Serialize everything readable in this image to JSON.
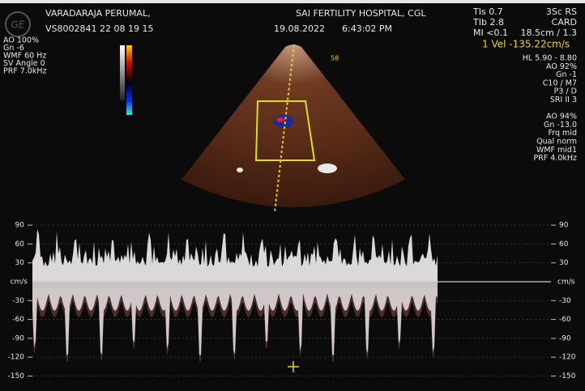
{
  "header": {
    "patient": "VARADARAJA PERUMAL,",
    "patient_id": "VS8002841 22 08 19 15",
    "hospital": "SAI FERTILITY HOSPITAL, CGL",
    "date": "19.08.2022",
    "time": "6:43:02 PM"
  },
  "top_right": {
    "left": [
      "TIs  0.7",
      "TIb  2.8",
      "MI <0.1"
    ],
    "right": [
      "3Sc RS",
      "CARD",
      "18.5cm / 1.3"
    ]
  },
  "measurement": "1 Vel -135.22cm/s",
  "left_params": [
    "AO 100%",
    "Gn -6",
    "WMF 60 Hz",
    "SV Angle  0",
    "PRF  7.0kHz"
  ],
  "right_params": [
    "HL 5.90 - 8.80",
    "AO 92%",
    "Gn -1",
    "C10 / M7",
    "P3 / D",
    "SRI II 3",
    "",
    "AO 94%",
    "Gn -13.0",
    "Frq mid",
    "Qual norm",
    "WMF mid1",
    "PRF 4.0kHz"
  ],
  "sector_label": "58",
  "spectrum": {
    "unit": "cm/s",
    "ticks": [
      90,
      60,
      30,
      -30,
      -60,
      -90,
      -120,
      -150
    ]
  }
}
